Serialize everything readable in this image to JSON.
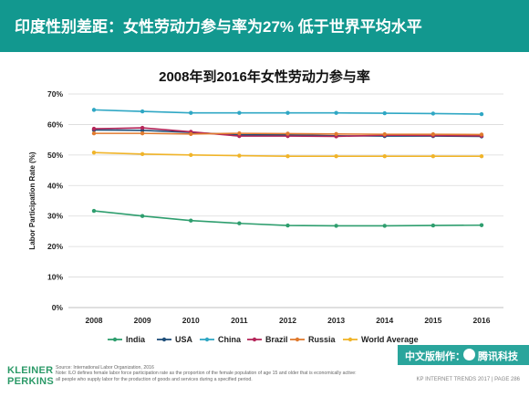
{
  "header": {
    "title": "印度性别差距：女性劳动力参与率为27% 低于世界平均水平"
  },
  "chart_data": {
    "type": "line",
    "title": "2008年到2016年女性劳动力参与率",
    "xlabel": "",
    "ylabel": "Labor Participation Rate (%)",
    "x": [
      "2008",
      "2009",
      "2010",
      "2011",
      "2012",
      "2013",
      "2014",
      "2015",
      "2016"
    ],
    "ylim": [
      0,
      70
    ],
    "yticks": [
      "0%",
      "10%",
      "20%",
      "30%",
      "40%",
      "50%",
      "60%",
      "70%"
    ],
    "grid": true,
    "legend_position": "bottom",
    "series": [
      {
        "name": "India",
        "color": "#2e9e6e",
        "values": [
          31.7,
          30.0,
          28.5,
          27.6,
          26.9,
          26.8,
          26.8,
          26.9,
          27.0
        ]
      },
      {
        "name": "USA",
        "color": "#1f4f7a",
        "values": [
          58.2,
          58.1,
          57.4,
          56.6,
          56.6,
          56.3,
          56.2,
          56.2,
          56.1
        ]
      },
      {
        "name": "China",
        "color": "#2fa7c4",
        "values": [
          64.8,
          64.3,
          63.8,
          63.8,
          63.8,
          63.8,
          63.7,
          63.6,
          63.4
        ]
      },
      {
        "name": "Brazil",
        "color": "#b5265a",
        "values": [
          58.6,
          58.9,
          57.6,
          56.2,
          56.2,
          56.1,
          56.5,
          56.4,
          56.3
        ]
      },
      {
        "name": "Russia",
        "color": "#e07a2e",
        "values": [
          57.1,
          57.1,
          56.9,
          57.1,
          57.0,
          56.9,
          56.8,
          56.8,
          56.7
        ]
      },
      {
        "name": "World Average",
        "color": "#f0b429",
        "values": [
          50.8,
          50.3,
          50.0,
          49.8,
          49.6,
          49.6,
          49.6,
          49.6,
          49.6
        ]
      }
    ]
  },
  "footer": {
    "brand_line1": "KLEINER",
    "brand_line2": "PERKINS",
    "source": "Source: International Labor Organization, 2016",
    "note": "Note: ILO defines female labor force participation rate as the proportion of the female population of age 15 and older that is economically active:",
    "note2": "all people who supply labor for the production of goods and services during a specified period.",
    "credit_label": "中文版制作：",
    "credit_brand": "腾讯科技",
    "page_ref": "KP INTERNET TRENDS 2017  |  PAGE 286"
  }
}
